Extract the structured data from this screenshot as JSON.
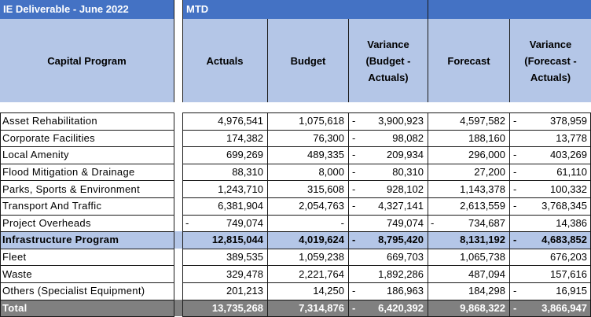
{
  "header": {
    "title": "IE Deliverable - June 2022",
    "period": "MTD",
    "columns": {
      "program": "Capital Program",
      "actuals": "Actuals",
      "budget": "Budget",
      "variance_budget": "Variance (Budget - Actuals)",
      "forecast": "Forecast",
      "variance_forecast": "Variance (Forecast - Actuals)"
    }
  },
  "rows": [
    {
      "label": "Asset Rehabilitation",
      "actuals": "4,976,541",
      "budget": "1,075,618",
      "var_budget": "3,900,923",
      "var_budget_neg": true,
      "forecast": "4,597,582",
      "forecast_neg": false,
      "var_forecast": "378,959",
      "var_forecast_neg": true,
      "actuals_neg": false
    },
    {
      "label": "Corporate Facilities",
      "actuals": "174,382",
      "budget": "76,300",
      "var_budget": "98,082",
      "var_budget_neg": true,
      "forecast": "188,160",
      "forecast_neg": false,
      "var_forecast": "13,778",
      "var_forecast_neg": false,
      "actuals_neg": false
    },
    {
      "label": "Local Amenity",
      "actuals": "699,269",
      "budget": "489,335",
      "var_budget": "209,934",
      "var_budget_neg": true,
      "forecast": "296,000",
      "forecast_neg": false,
      "var_forecast": "403,269",
      "var_forecast_neg": true,
      "actuals_neg": false
    },
    {
      "label": "Flood Mitigation & Drainage",
      "actuals": "88,310",
      "budget": "8,000",
      "var_budget": "80,310",
      "var_budget_neg": true,
      "forecast": "27,200",
      "forecast_neg": false,
      "var_forecast": "61,110",
      "var_forecast_neg": true,
      "actuals_neg": false
    },
    {
      "label": "Parks, Sports & Environment",
      "actuals": "1,243,710",
      "budget": "315,608",
      "var_budget": "928,102",
      "var_budget_neg": true,
      "forecast": "1,143,378",
      "forecast_neg": false,
      "var_forecast": "100,332",
      "var_forecast_neg": true,
      "actuals_neg": false
    },
    {
      "label": "Transport And Traffic",
      "actuals": "6,381,904",
      "budget": "2,054,763",
      "var_budget": "4,327,141",
      "var_budget_neg": true,
      "forecast": "2,613,559",
      "forecast_neg": false,
      "var_forecast": "3,768,345",
      "var_forecast_neg": true,
      "actuals_neg": false
    },
    {
      "label": "Project Overheads",
      "actuals": "749,074",
      "budget": "-",
      "var_budget": "749,074",
      "var_budget_neg": false,
      "forecast": "734,687",
      "forecast_neg": true,
      "var_forecast": "14,386",
      "var_forecast_neg": false,
      "actuals_neg": true
    },
    {
      "label": "Infrastructure Program",
      "actuals": "12,815,044",
      "budget": "4,019,624",
      "var_budget": "8,795,420",
      "var_budget_neg": true,
      "forecast": "8,131,192",
      "forecast_neg": false,
      "var_forecast": "4,683,852",
      "var_forecast_neg": true,
      "actuals_neg": false,
      "style": "infra"
    },
    {
      "label": "Fleet",
      "actuals": "389,535",
      "budget": "1,059,238",
      "var_budget": "669,703",
      "var_budget_neg": false,
      "forecast": "1,065,738",
      "forecast_neg": false,
      "var_forecast": "676,203",
      "var_forecast_neg": false,
      "actuals_neg": false
    },
    {
      "label": "Waste",
      "actuals": "329,478",
      "budget": "2,221,764",
      "var_budget": "1,892,286",
      "var_budget_neg": false,
      "forecast": "487,094",
      "forecast_neg": false,
      "var_forecast": "157,616",
      "var_forecast_neg": false,
      "actuals_neg": false
    },
    {
      "label": "Others (Specialist Equipment)",
      "actuals": "201,213",
      "budget": "14,250",
      "var_budget": "186,963",
      "var_budget_neg": true,
      "forecast": "184,298",
      "forecast_neg": false,
      "var_forecast": "16,915",
      "var_forecast_neg": true,
      "actuals_neg": false
    },
    {
      "label": "Total",
      "actuals": "13,735,268",
      "budget": "7,314,876",
      "var_budget": "6,420,392",
      "var_budget_neg": true,
      "forecast": "9,868,322",
      "forecast_neg": false,
      "var_forecast": "3,866,947",
      "var_forecast_neg": true,
      "actuals_neg": false,
      "style": "total"
    }
  ],
  "colors": {
    "header_blue": "#4472c4",
    "header_light": "#b4c6e7",
    "total_grey": "#808080"
  }
}
